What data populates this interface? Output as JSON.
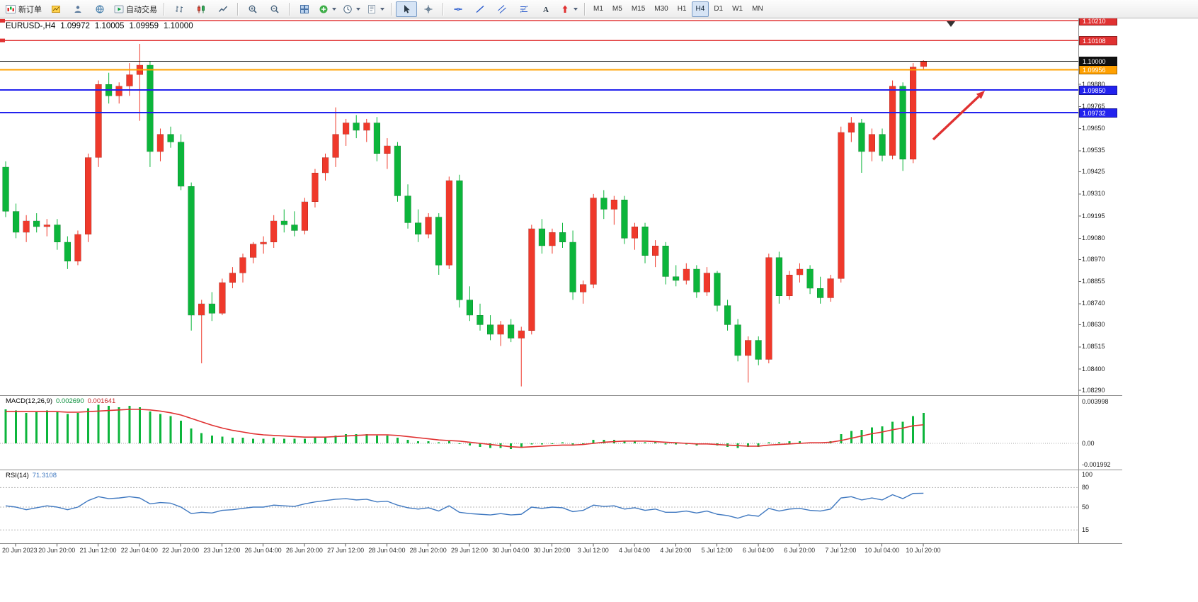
{
  "toolbar": {
    "items": [
      {
        "kind": "button",
        "name": "new-order-button",
        "icon": "new-order-icon",
        "label": "新订单"
      },
      {
        "kind": "button",
        "name": "chart-window-button",
        "icon": "chart-window-icon"
      },
      {
        "kind": "button",
        "name": "market-watch-button",
        "icon": "market-watch-icon"
      },
      {
        "kind": "button",
        "name": "navigator-button",
        "icon": "navigator-icon"
      },
      {
        "kind": "button",
        "name": "autotrade-button",
        "icon": "autotrade-icon",
        "label": "自动交易"
      },
      {
        "kind": "sep"
      },
      {
        "kind": "button",
        "name": "bar-chart-button",
        "icon": "bar-chart-icon"
      },
      {
        "kind": "button",
        "name": "candlestick-chart-button",
        "icon": "candlestick-icon"
      },
      {
        "kind": "button",
        "name": "line-chart-button",
        "icon": "line-chart-icon"
      },
      {
        "kind": "sep"
      },
      {
        "kind": "button",
        "name": "zoom-in-button",
        "icon": "zoom-in-icon"
      },
      {
        "kind": "button",
        "name": "zoom-out-button",
        "icon": "zoom-out-icon"
      },
      {
        "kind": "sep"
      },
      {
        "kind": "button",
        "name": "tile-windows-button",
        "icon": "tile-windows-icon"
      },
      {
        "kind": "button",
        "name": "indicators-button",
        "icon": "indicators-icon",
        "caret": true
      },
      {
        "kind": "button",
        "name": "periods-button",
        "icon": "clock-icon",
        "caret": true
      },
      {
        "kind": "button",
        "name": "templates-button",
        "icon": "template-icon",
        "caret": true
      },
      {
        "kind": "sep"
      },
      {
        "kind": "button",
        "name": "cursor-button",
        "icon": "cursor-icon",
        "pressed": true
      },
      {
        "kind": "button",
        "name": "crosshair-button",
        "icon": "crosshair-icon"
      },
      {
        "kind": "sep"
      },
      {
        "kind": "button",
        "name": "horizontal-line-button",
        "icon": "hline-icon"
      },
      {
        "kind": "button",
        "name": "trendline-button",
        "icon": "trendline-icon"
      },
      {
        "kind": "button",
        "name": "channel-button",
        "icon": "channel-icon"
      },
      {
        "kind": "button",
        "name": "fibonacci-button",
        "icon": "fibonacci-icon"
      },
      {
        "kind": "button",
        "name": "text-button",
        "icon": "text-icon"
      },
      {
        "kind": "button",
        "name": "arrows-button",
        "icon": "arrow-objects-icon",
        "caret": true
      },
      {
        "kind": "sep"
      }
    ],
    "timeframes": [
      {
        "label": "M1"
      },
      {
        "label": "M5"
      },
      {
        "label": "M15"
      },
      {
        "label": "M30"
      },
      {
        "label": "H1"
      },
      {
        "label": "H4",
        "active": true
      },
      {
        "label": "D1"
      },
      {
        "label": "W1"
      },
      {
        "label": "MN"
      }
    ],
    "notification_count": "1"
  },
  "chart": {
    "header": {
      "symbol": "EURUSD-,H4",
      "open": "1.09972",
      "high": "1.10005",
      "low": "1.09959",
      "close": "1.10000"
    }
  },
  "macd": {
    "title": "MACD(12,26,9)",
    "value_main": "0.002690",
    "value_signal": "0.001641"
  },
  "rsi": {
    "title": "RSI(14)",
    "value": "71.3108"
  },
  "chart_data": [
    {
      "type": "candlestick",
      "symbol": "EURUSD-",
      "timeframe": "H4",
      "ylim": [
        1.08268,
        1.10215
      ],
      "colors": {
        "bull": "#ef392b",
        "bear": "#0cb53b"
      },
      "y_axis_labels": [
        "1.09880",
        "1.09765",
        "1.09650",
        "1.09535",
        "1.09425",
        "1.09310",
        "1.09195",
        "1.09080",
        "1.08970",
        "1.08855",
        "1.08740",
        "1.08630",
        "1.08515",
        "1.08400",
        "1.08290"
      ],
      "x_labels": [
        "20 Jun 2023",
        "20 Jun 20:00",
        "21 Jun 12:00",
        "22 Jun 04:00",
        "22 Jun 20:00",
        "23 Jun 12:00",
        "26 Jun 04:00",
        "26 Jun 20:00",
        "27 Jun 12:00",
        "28 Jun 04:00",
        "28 Jun 20:00",
        "29 Jun 12:00",
        "30 Jun 04:00",
        "30 Jun 20:00",
        "3 Jul 12:00",
        "4 Jul 04:00",
        "4 Jul 20:00",
        "5 Jul 12:00",
        "6 Jul 04:00",
        "6 Jul 20:00",
        "7 Jul 12:00",
        "10 Jul 04:00",
        "10 Jul 20:00"
      ],
      "hlines": [
        {
          "label": "1.10210",
          "value": 1.1021,
          "color": "#e03131",
          "width": 1.4,
          "name": "resistance-line-upper",
          "handle": true
        },
        {
          "label": "1.10108",
          "value": 1.10108,
          "color": "#e03131",
          "width": 1.4,
          "name": "resistance-line-lower",
          "handle": true
        },
        {
          "label": "1.09956",
          "value": 1.09956,
          "color": "#ffa000",
          "width": 2,
          "name": "orange-level-line",
          "handle": false
        },
        {
          "label": "1.09850",
          "value": 1.0985,
          "color": "#2222ee",
          "width": 2,
          "name": "support-line-upper",
          "handle": false
        },
        {
          "label": "1.09732",
          "value": 1.09732,
          "color": "#2222ee",
          "width": 2,
          "name": "support-line-lower",
          "handle": false
        }
      ],
      "bid_line": {
        "label": "1.10000",
        "value": 1.1,
        "color": "#111111"
      },
      "annotations": [
        {
          "type": "arrow",
          "color": "#e03131"
        }
      ],
      "ohlc": [
        [
          1.0945,
          1.0948,
          1.0919,
          1.0922
        ],
        [
          1.0922,
          1.0926,
          1.0908,
          1.0911
        ],
        [
          1.0911,
          1.092,
          1.0906,
          1.0917
        ],
        [
          1.0917,
          1.0921,
          1.0911,
          1.0914
        ],
        [
          1.0914,
          1.0918,
          1.0909,
          1.0915
        ],
        [
          1.0915,
          1.0918,
          1.0902,
          1.0906
        ],
        [
          1.0906,
          1.0909,
          1.0892,
          1.0896
        ],
        [
          1.0896,
          1.0912,
          1.0894,
          1.091
        ],
        [
          1.091,
          1.0952,
          1.0906,
          1.095
        ],
        [
          1.095,
          1.099,
          1.0945,
          1.0988
        ],
        [
          1.0988,
          1.0994,
          1.0978,
          1.0982
        ],
        [
          1.0982,
          1.0989,
          1.0978,
          1.0987
        ],
        [
          1.0987,
          1.0999,
          1.0982,
          1.0993
        ],
        [
          1.0993,
          1.1009,
          1.0969,
          1.0998
        ],
        [
          1.0998,
          1.1,
          1.0945,
          1.0953
        ],
        [
          1.0953,
          1.0965,
          1.0948,
          1.0962
        ],
        [
          1.0962,
          1.0966,
          1.0955,
          1.0958
        ],
        [
          1.0958,
          1.0962,
          1.0933,
          1.0935
        ],
        [
          1.0935,
          1.0937,
          1.086,
          1.0868
        ],
        [
          1.0868,
          1.0876,
          1.0843,
          1.0874
        ],
        [
          1.0874,
          1.088,
          1.0865,
          1.0869
        ],
        [
          1.0869,
          1.0887,
          1.0868,
          1.0885
        ],
        [
          1.0885,
          1.0893,
          1.0882,
          1.089
        ],
        [
          1.089,
          1.09,
          1.0885,
          1.0898
        ],
        [
          1.0898,
          1.0906,
          1.0895,
          1.0905
        ],
        [
          1.0905,
          1.0909,
          1.09,
          1.0906
        ],
        [
          1.0906,
          1.092,
          1.0903,
          1.0917
        ],
        [
          1.0917,
          1.0923,
          1.0911,
          1.0915
        ],
        [
          1.0915,
          1.0922,
          1.0909,
          1.0912
        ],
        [
          1.0912,
          1.0929,
          1.091,
          1.0927
        ],
        [
          1.0927,
          1.0944,
          1.0924,
          1.0942
        ],
        [
          1.0942,
          1.0952,
          1.0938,
          1.095
        ],
        [
          1.095,
          1.0976,
          1.0945,
          1.0962
        ],
        [
          1.0962,
          1.097,
          1.0956,
          1.0968
        ],
        [
          1.0968,
          1.0972,
          1.096,
          1.0964
        ],
        [
          1.0964,
          1.097,
          1.0958,
          1.0968
        ],
        [
          1.0968,
          1.0971,
          1.0948,
          1.0952
        ],
        [
          1.0952,
          1.096,
          1.0944,
          1.0956
        ],
        [
          1.0956,
          1.0958,
          1.0927,
          1.093
        ],
        [
          1.093,
          1.0936,
          1.0913,
          1.0916
        ],
        [
          1.0916,
          1.0923,
          1.0906,
          1.091
        ],
        [
          1.091,
          1.0921,
          1.0908,
          1.0919
        ],
        [
          1.0919,
          1.0921,
          1.0889,
          1.0894
        ],
        [
          1.0894,
          1.094,
          1.0892,
          1.0938
        ],
        [
          1.0938,
          1.0941,
          1.0872,
          1.0876
        ],
        [
          1.0876,
          1.0883,
          1.0865,
          1.0868
        ],
        [
          1.0868,
          1.0874,
          1.086,
          1.0863
        ],
        [
          1.0863,
          1.0868,
          1.0855,
          1.0858
        ],
        [
          1.0858,
          1.0865,
          1.0852,
          1.0863
        ],
        [
          1.0863,
          1.0866,
          1.0854,
          1.0856
        ],
        [
          1.0856,
          1.0862,
          1.0831,
          1.086
        ],
        [
          1.086,
          1.0915,
          1.0858,
          1.0913
        ],
        [
          1.0913,
          1.0918,
          1.09,
          1.0904
        ],
        [
          1.0904,
          1.0913,
          1.09,
          1.0911
        ],
        [
          1.0911,
          1.0916,
          1.0903,
          1.0906
        ],
        [
          1.0906,
          1.0912,
          1.0876,
          1.088
        ],
        [
          1.088,
          1.0886,
          1.0874,
          1.0884
        ],
        [
          1.0884,
          1.0931,
          1.0882,
          1.0929
        ],
        [
          1.0929,
          1.0933,
          1.0918,
          1.0923
        ],
        [
          1.0923,
          1.093,
          1.0915,
          1.0928
        ],
        [
          1.0928,
          1.093,
          1.0905,
          1.0908
        ],
        [
          1.0908,
          1.0916,
          1.0902,
          1.0914
        ],
        [
          1.0914,
          1.0916,
          1.0895,
          1.0899
        ],
        [
          1.0899,
          1.0907,
          1.0893,
          1.0904
        ],
        [
          1.0904,
          1.0906,
          1.0884,
          1.0888
        ],
        [
          1.0888,
          1.0894,
          1.0883,
          1.0886
        ],
        [
          1.0886,
          1.0895,
          1.0884,
          1.0892
        ],
        [
          1.0892,
          1.0894,
          1.0877,
          1.088
        ],
        [
          1.088,
          1.0893,
          1.0878,
          1.089
        ],
        [
          1.089,
          1.0891,
          1.087,
          1.0873
        ],
        [
          1.0873,
          1.0876,
          1.086,
          1.0863
        ],
        [
          1.0863,
          1.0866,
          1.0844,
          1.0847
        ],
        [
          1.0847,
          1.0857,
          1.0833,
          1.0855
        ],
        [
          1.0855,
          1.0857,
          1.0842,
          1.0845
        ],
        [
          1.0845,
          1.09,
          1.0843,
          1.0898
        ],
        [
          1.0898,
          1.0901,
          1.0874,
          1.0878
        ],
        [
          1.0878,
          1.0891,
          1.0876,
          1.0889
        ],
        [
          1.0889,
          1.0895,
          1.0885,
          1.0892
        ],
        [
          1.0892,
          1.0894,
          1.0879,
          1.0882
        ],
        [
          1.0882,
          1.0888,
          1.0874,
          1.0877
        ],
        [
          1.0877,
          1.0889,
          1.0875,
          1.0887
        ],
        [
          1.0887,
          1.0966,
          1.0885,
          1.0963
        ],
        [
          1.0963,
          1.0971,
          1.0958,
          1.0968
        ],
        [
          1.0968,
          1.097,
          1.0942,
          1.0953
        ],
        [
          1.0953,
          1.0965,
          1.0948,
          1.0962
        ],
        [
          1.0962,
          1.0965,
          1.0948,
          1.0951
        ],
        [
          1.0951,
          1.099,
          1.0949,
          1.0987
        ],
        [
          1.0987,
          1.0989,
          1.0943,
          1.0949
        ],
        [
          1.0949,
          1.0999,
          1.0947,
          1.0997
        ],
        [
          1.09972,
          1.10005,
          1.09959,
          1.1
        ]
      ]
    },
    {
      "type": "bar",
      "name": "MACD(12,26,9)",
      "axis_labels": [
        "0.003998",
        "0.00",
        "-0.001992"
      ],
      "axis_values": [
        0.003998,
        0,
        -0.001992
      ],
      "ylim": [
        -0.002,
        0.004
      ],
      "colors": {
        "histogram": "#0cb53b",
        "signal": "#e03131"
      },
      "values": [
        0.003,
        0.0029,
        0.0027,
        0.0028,
        0.0029,
        0.0028,
        0.0026,
        0.0027,
        0.0031,
        0.0034,
        0.0033,
        0.0032,
        0.0033,
        0.0032,
        0.0028,
        0.0026,
        0.0024,
        0.002,
        0.0013,
        0.0009,
        0.0007,
        0.0006,
        0.0005,
        0.0005,
        0.0004,
        0.0004,
        0.0005,
        0.0004,
        0.0004,
        0.0004,
        0.0005,
        0.0006,
        0.0007,
        0.0008,
        0.0008,
        0.0008,
        0.0007,
        0.0007,
        0.0005,
        0.0003,
        0.0002,
        0.0002,
        0.0001,
        0.0002,
        0.0,
        -0.0002,
        -0.0003,
        -0.0004,
        -0.0004,
        -0.0005,
        -0.0004,
        -0.0001,
        -0.0001,
        0.0,
        0.0001,
        -0.0001,
        0.0,
        0.0003,
        0.0003,
        0.0003,
        0.0002,
        0.0002,
        0.0001,
        0.0001,
        -0.0001,
        -0.0001,
        -0.0001,
        -0.0002,
        -0.0001,
        -0.0002,
        -0.0003,
        -0.0004,
        -0.0003,
        -0.0003,
        0.0001,
        0.0001,
        0.0002,
        0.0002,
        0.0001,
        0.0001,
        0.0002,
        0.0008,
        0.0011,
        0.0012,
        0.0014,
        0.0015,
        0.0019,
        0.0019,
        0.0024,
        0.00269
      ],
      "line": [
        0.0028,
        0.0028,
        0.0028,
        0.0028,
        0.0028,
        0.0028,
        0.00275,
        0.00275,
        0.0028,
        0.00285,
        0.0029,
        0.00295,
        0.003,
        0.003,
        0.00295,
        0.00285,
        0.0027,
        0.0025,
        0.0022,
        0.0019,
        0.0016,
        0.00135,
        0.00115,
        0.001,
        0.00085,
        0.00075,
        0.0007,
        0.00065,
        0.0006,
        0.00055,
        0.00055,
        0.00055,
        0.0006,
        0.00065,
        0.0007,
        0.00075,
        0.00075,
        0.00075,
        0.0007,
        0.0006,
        0.0005,
        0.0004,
        0.0003,
        0.00025,
        0.0002,
        0.0001,
        0.0,
        -0.0001,
        -0.0002,
        -0.0003,
        -0.00035,
        -0.0003,
        -0.00025,
        -0.0002,
        -0.00015,
        -0.00015,
        -0.0001,
        0.0,
        0.0001,
        0.00015,
        0.0002,
        0.0002,
        0.0002,
        0.00015,
        0.0001,
        5e-05,
        0.0,
        -5e-05,
        -5e-05,
        -0.0001,
        -0.00015,
        -0.0002,
        -0.00025,
        -0.00025,
        -0.00015,
        -0.0001,
        -5e-05,
        0.0,
        5e-05,
        5e-05,
        0.0001,
        0.00025,
        0.00045,
        0.00065,
        0.00085,
        0.001,
        0.0012,
        0.00135,
        0.00155,
        0.001641
      ]
    },
    {
      "type": "line",
      "name": "RSI(14)",
      "axis_labels": [
        "100",
        "80",
        "50",
        "15"
      ],
      "axis_values": [
        100,
        80,
        50,
        15
      ],
      "levels": [
        80,
        50,
        15
      ],
      "ylim": [
        0,
        100
      ],
      "colors": {
        "line": "#3f78c0"
      },
      "values": [
        52,
        50,
        46,
        49,
        52,
        50,
        46,
        50,
        60,
        66,
        63,
        64,
        66,
        64,
        55,
        57,
        56,
        50,
        40,
        42,
        41,
        45,
        46,
        48,
        50,
        50,
        53,
        52,
        51,
        55,
        58,
        60,
        62,
        63,
        61,
        62,
        58,
        59,
        53,
        49,
        47,
        49,
        44,
        52,
        42,
        40,
        39,
        38,
        40,
        38,
        39,
        50,
        48,
        50,
        49,
        43,
        45,
        53,
        51,
        52,
        47,
        49,
        45,
        47,
        42,
        42,
        44,
        41,
        44,
        39,
        37,
        33,
        38,
        36,
        48,
        44,
        47,
        48,
        45,
        44,
        47,
        64,
        66,
        61,
        64,
        61,
        69,
        63,
        71,
        71.31
      ]
    }
  ]
}
